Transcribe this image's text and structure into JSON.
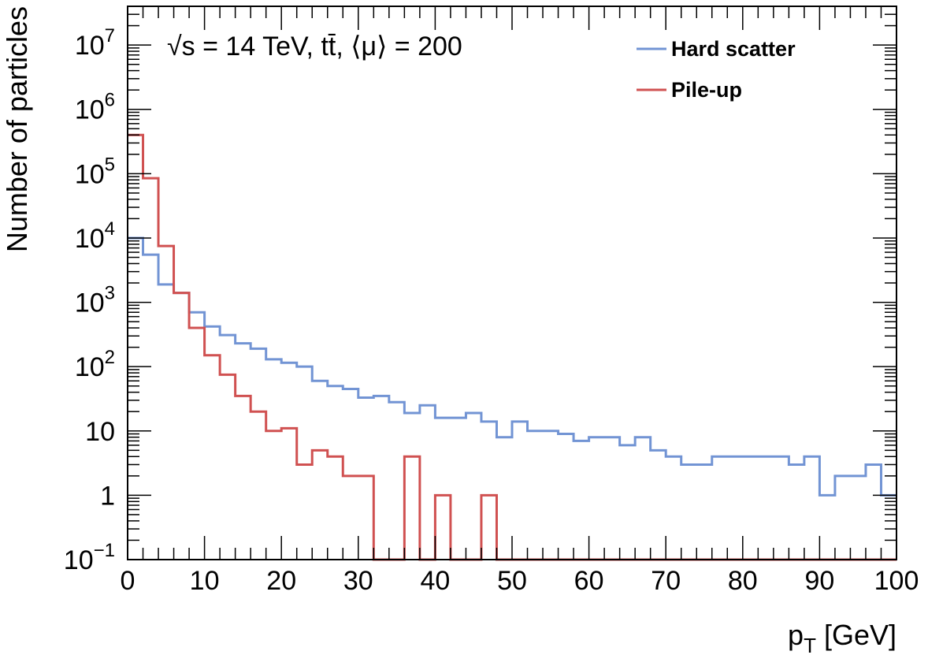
{
  "chart_data": {
    "type": "histogram",
    "xlabel_main": "p",
    "xlabel_sub": "T",
    "xlabel_unit": " [GeV]",
    "ylabel": "Number of particles",
    "annotation": {
      "sqrt": "√s",
      "rest1": " = 14 TeV, ",
      "ttbar": "tt̄",
      "rest2": ", ⟨μ⟩ = 200"
    },
    "xlim": [
      0,
      100
    ],
    "ylim": [
      0.1,
      40000000
    ],
    "y_scale": "log",
    "bin_width": 2,
    "x_ticks": [
      0,
      10,
      20,
      30,
      40,
      50,
      60,
      70,
      80,
      90,
      100
    ],
    "x_tick_labels": [
      "0",
      "10",
      "20",
      "30",
      "40",
      "50",
      "60",
      "70",
      "80",
      "90",
      "100"
    ],
    "y_tick_labels": [
      {
        "value": 0.1,
        "base": "10",
        "exp": "−1"
      },
      {
        "value": 1,
        "base": "1",
        "exp": ""
      },
      {
        "value": 10,
        "base": "10",
        "exp": ""
      },
      {
        "value": 100,
        "base": "10",
        "exp": "2"
      },
      {
        "value": 1000,
        "base": "10",
        "exp": "3"
      },
      {
        "value": 10000,
        "base": "10",
        "exp": "4"
      },
      {
        "value": 100000,
        "base": "10",
        "exp": "5"
      },
      {
        "value": 1000000,
        "base": "10",
        "exp": "6"
      },
      {
        "value": 10000000,
        "base": "10",
        "exp": "7"
      }
    ],
    "legend": {
      "position": "top-right"
    },
    "series": [
      {
        "name": "Hard scatter",
        "color": "#7294d4",
        "values": [
          10000,
          5500,
          1900,
          1400,
          700,
          420,
          310,
          230,
          190,
          130,
          115,
          100,
          60,
          50,
          45,
          33,
          35,
          28,
          19,
          25,
          16,
          16,
          19,
          14,
          8,
          14,
          10,
          10,
          9,
          7,
          8,
          8,
          6,
          8,
          5,
          4,
          3,
          3,
          4,
          4,
          4,
          4,
          4,
          3,
          4,
          1,
          2,
          2,
          3,
          1
        ]
      },
      {
        "name": "Pile-up",
        "color": "#d05151",
        "values": [
          400000,
          85000,
          7500,
          1400,
          400,
          150,
          75,
          35,
          20,
          10,
          11,
          3,
          5,
          4,
          2,
          2,
          0,
          0,
          4,
          0,
          1,
          0,
          0,
          1,
          0,
          0,
          0,
          0,
          0,
          0,
          0,
          0,
          0,
          0,
          0,
          0,
          0,
          0,
          0,
          0,
          0,
          0,
          0,
          0,
          0,
          0,
          0,
          0,
          0,
          0
        ]
      }
    ]
  }
}
